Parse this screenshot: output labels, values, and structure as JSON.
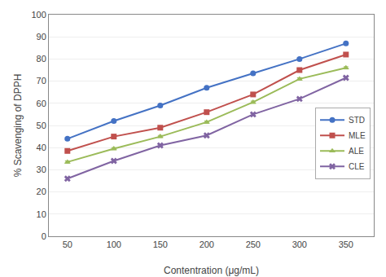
{
  "chart_data": {
    "type": "line",
    "xlabel": "Contentration (μg/mL)",
    "ylabel": "% Scavenging of DPPH",
    "x": [
      50,
      100,
      150,
      200,
      250,
      300,
      350
    ],
    "series": [
      {
        "name": "STD",
        "color": "#4472C4",
        "marker": "circle",
        "line_style": "solid",
        "values": [
          44,
          52,
          59,
          67,
          73.5,
          80,
          87
        ],
        "errors": [
          0.5,
          0.5,
          0.5,
          0.5,
          0.5,
          0.5,
          0.5
        ]
      },
      {
        "name": "MLE",
        "color": "#C0504D",
        "marker": "square",
        "line_style": "solid",
        "values": [
          38.5,
          45,
          49,
          56,
          64,
          75,
          82
        ],
        "errors": [
          0.5,
          0.5,
          0.5,
          0.5,
          0.5,
          0.5,
          0.5
        ]
      },
      {
        "name": "ALE",
        "color": "#9BBB59",
        "marker": "triangle-up",
        "line_style": "solid",
        "values": [
          33.5,
          39.5,
          45,
          51.5,
          60.5,
          71,
          76
        ],
        "errors": [
          0.5,
          0.5,
          0.5,
          0.5,
          0.5,
          0.5,
          0.5
        ]
      },
      {
        "name": "CLE",
        "color": "#8064A2",
        "marker": "x",
        "line_style": "solid",
        "values": [
          26,
          34,
          41,
          45.5,
          55,
          62,
          71.5
        ],
        "errors": [
          0.5,
          0.5,
          0.5,
          0.5,
          0.5,
          0.5,
          0.5
        ]
      }
    ],
    "xlim": [
      30,
      380
    ],
    "ylim": [
      0,
      100
    ],
    "xticks": [
      50,
      100,
      150,
      200,
      250,
      300,
      350
    ],
    "yticks": [
      0,
      10,
      20,
      30,
      40,
      50,
      60,
      70,
      80,
      90,
      100
    ],
    "grid": "y",
    "legend": "right"
  }
}
